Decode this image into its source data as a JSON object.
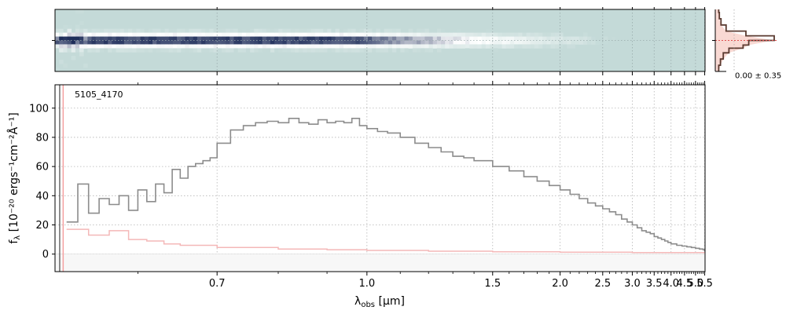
{
  "chart_data": [
    {
      "type": "heatmap",
      "panel": "2d-spectrum",
      "colormap": [
        "#c4dad8",
        "#ffffff",
        "#1f2e5a"
      ],
      "ylim": [
        -1,
        1
      ]
    },
    {
      "type": "line",
      "panel": "1d-spectrum",
      "object_id": "5105_4170",
      "xlabel_main": "λ",
      "xlabel_sub": "obs",
      "xlabel_unit": " [μm]",
      "ylabel_main": "f",
      "ylabel_sub": "λ",
      "ylabel_unit": " [10⁻²⁰ ergs⁻¹cm⁻²Å⁻¹]",
      "x_scale": "reciprocal-sqrt (nonlinear wavelength axis)",
      "xlim": [
        0.52,
        5.52
      ],
      "ylim": [
        -12,
        116
      ],
      "xticks": [
        0.7,
        1.0,
        1.5,
        2.0,
        2.5,
        3.0,
        3.5,
        4.0,
        4.5,
        5.0,
        5.5
      ],
      "xtick_labels": [
        "0.7",
        "1.0",
        "1.5",
        "2.0",
        "2.5",
        "3.0",
        "3.5",
        "4.0",
        "4.5",
        "5.0",
        "5.5"
      ],
      "yticks": [
        0,
        20,
        40,
        60,
        80,
        100
      ],
      "ytick_labels": [
        "0",
        "20",
        "40",
        "60",
        "80",
        "100"
      ],
      "grid": true,
      "series": [
        {
          "role": "flux",
          "color": "#8c8c8c",
          "x": [
            0.53,
            0.54,
            0.55,
            0.56,
            0.57,
            0.58,
            0.59,
            0.6,
            0.61,
            0.62,
            0.63,
            0.64,
            0.65,
            0.66,
            0.67,
            0.68,
            0.69,
            0.7,
            0.72,
            0.74,
            0.76,
            0.78,
            0.8,
            0.82,
            0.84,
            0.86,
            0.88,
            0.9,
            0.92,
            0.94,
            0.96,
            0.98,
            1.0,
            1.03,
            1.06,
            1.1,
            1.15,
            1.2,
            1.25,
            1.3,
            1.35,
            1.4,
            1.5,
            1.6,
            1.7,
            1.8,
            1.9,
            2.0,
            2.1,
            2.2,
            2.3,
            2.4,
            2.5,
            2.6,
            2.7,
            2.8,
            2.9,
            3.0,
            3.1,
            3.2,
            3.3,
            3.4,
            3.5,
            3.6,
            3.7,
            3.8,
            3.9,
            4.0,
            4.2,
            4.4,
            4.6,
            4.8,
            5.0,
            5.2,
            5.4,
            5.5
          ],
          "values": [
            22,
            48,
            28,
            38,
            34,
            40,
            30,
            44,
            36,
            48,
            42,
            58,
            52,
            60,
            62,
            64,
            66,
            76,
            85,
            88,
            90,
            91,
            90,
            93,
            90,
            89,
            92,
            90,
            91,
            90,
            93,
            88,
            86,
            84,
            83,
            80,
            76,
            73,
            70,
            67,
            66,
            64,
            60,
            57,
            53,
            50,
            47,
            44,
            41,
            38,
            35,
            33,
            31,
            29,
            27,
            24,
            22,
            20,
            18,
            16,
            15,
            14,
            12,
            11,
            10,
            9,
            8,
            7,
            6,
            5.5,
            5,
            4.5,
            4,
            3.5,
            3,
            2
          ]
        },
        {
          "role": "uncertainty",
          "color": "#f4b8b8",
          "x": [
            0.53,
            0.55,
            0.57,
            0.59,
            0.61,
            0.63,
            0.65,
            0.7,
            0.8,
            0.9,
            1.0,
            1.2,
            1.5,
            2.0,
            3.0,
            4.0,
            5.0,
            5.5
          ],
          "values": [
            17,
            13,
            16,
            10,
            9,
            7,
            6,
            4.5,
            3.5,
            3,
            2.5,
            2,
            1.6,
            1.3,
            1,
            1,
            1,
            1
          ]
        }
      ]
    },
    {
      "type": "area",
      "panel": "spatial-profile",
      "annotation": "0.00 ± 0.35",
      "x": [
        -1,
        -0.8,
        -0.6,
        -0.4,
        -0.25,
        -0.15,
        0,
        0.15,
        0.3,
        0.5,
        0.7,
        0.9,
        1
      ],
      "values": [
        0.02,
        0.05,
        0.1,
        0.2,
        0.45,
        0.55,
        1.0,
        0.5,
        0.15,
        0.06,
        0.03,
        0.02,
        0.01
      ],
      "colors": {
        "line": "#5a3a30",
        "fill": "#f6c9c0",
        "zero_line": "#e05050"
      }
    }
  ]
}
